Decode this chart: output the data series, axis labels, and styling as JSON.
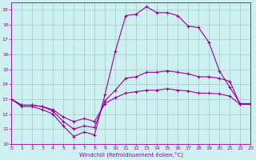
{
  "xlabel": "Windchill (Refroidissement éolien,°C)",
  "background_color": "#cff0f0",
  "grid_color": "#99cccc",
  "line_color": "#990099",
  "xlim": [
    0,
    23
  ],
  "ylim": [
    10,
    19.5
  ],
  "yticks": [
    10,
    11,
    12,
    13,
    14,
    15,
    16,
    17,
    18,
    19
  ],
  "xticks": [
    0,
    1,
    2,
    3,
    4,
    5,
    6,
    7,
    8,
    9,
    10,
    11,
    12,
    13,
    14,
    15,
    16,
    17,
    18,
    19,
    20,
    21,
    22,
    23
  ],
  "line1_x": [
    0,
    1,
    2,
    3,
    4,
    5,
    6,
    7,
    8,
    9,
    10,
    11,
    12,
    13,
    14,
    15,
    16,
    17,
    18,
    19,
    20,
    21,
    22,
    23
  ],
  "line1_y": [
    13.0,
    12.5,
    12.5,
    12.3,
    12.0,
    11.2,
    10.5,
    10.8,
    10.6,
    13.3,
    16.2,
    18.6,
    18.7,
    19.2,
    18.8,
    18.8,
    18.6,
    17.9,
    17.8,
    16.8,
    14.9,
    13.8,
    12.7,
    12.7
  ],
  "line2_x": [
    0,
    1,
    2,
    3,
    4,
    5,
    6,
    7,
    8,
    9,
    10,
    11,
    12,
    13,
    14,
    15,
    16,
    17,
    18,
    19,
    20,
    21,
    22,
    23
  ],
  "line2_y": [
    13.0,
    12.6,
    12.6,
    12.5,
    12.2,
    11.5,
    11.0,
    11.2,
    11.1,
    12.9,
    13.6,
    14.4,
    14.5,
    14.8,
    14.8,
    14.9,
    14.8,
    14.7,
    14.5,
    14.5,
    14.4,
    14.2,
    12.65,
    12.65
  ],
  "line3_x": [
    0,
    1,
    2,
    3,
    4,
    5,
    6,
    7,
    8,
    9,
    10,
    11,
    12,
    13,
    14,
    15,
    16,
    17,
    18,
    19,
    20,
    21,
    22,
    23
  ],
  "line3_y": [
    13.0,
    12.6,
    12.6,
    12.5,
    12.3,
    11.8,
    11.5,
    11.7,
    11.5,
    12.7,
    13.1,
    13.4,
    13.5,
    13.6,
    13.6,
    13.7,
    13.6,
    13.55,
    13.4,
    13.4,
    13.35,
    13.2,
    12.65,
    12.65
  ]
}
